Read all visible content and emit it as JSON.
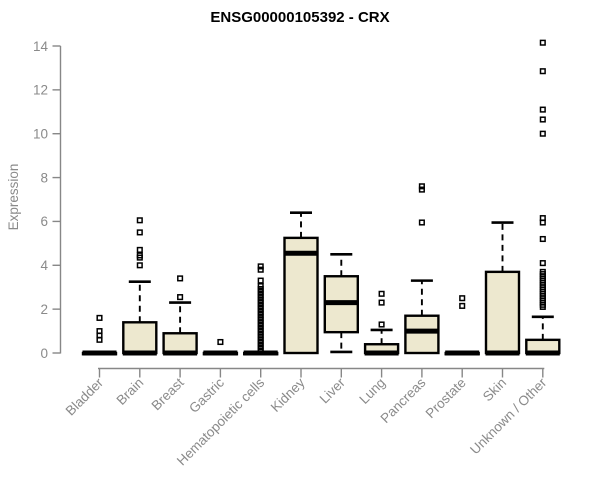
{
  "chart_data": {
    "type": "boxplot",
    "title": "ENSG00000105392 - CRX",
    "ylabel": "Expression",
    "ylim": [
      0,
      14
    ],
    "yticks": [
      0,
      2,
      4,
      6,
      8,
      10,
      12,
      14
    ],
    "grid": false,
    "legend": "none",
    "colors": {
      "box_fill": "#EDE8CF",
      "box_border": "#000000",
      "median": "#000000",
      "whisker": "#000000",
      "outlier": "#000000",
      "axis": "#878787",
      "tick_label": "#8A8A8A",
      "title": "#000000",
      "background": "#FFFFFF"
    },
    "categories": [
      "Bladder",
      "Brain",
      "Breast",
      "Gastric",
      "Hematopoietic cells",
      "Kidney",
      "Liver",
      "Lung",
      "Pancreas",
      "Prostate",
      "Skin",
      "Unknown / Other"
    ],
    "boxes": [
      {
        "category": "Bladder",
        "whisker_low": 0,
        "q1": 0,
        "median": 0,
        "q3": 0,
        "whisker_high": 0,
        "outliers": [
          0.6,
          0.8,
          1.0,
          1.6
        ]
      },
      {
        "category": "Brain",
        "whisker_low": 0,
        "q1": 0,
        "median": 0,
        "q3": 1.4,
        "whisker_high": 3.25,
        "outliers": [
          4.0,
          4.35,
          4.45,
          4.7,
          5.5,
          6.05
        ]
      },
      {
        "category": "Breast",
        "whisker_low": 0,
        "q1": 0,
        "median": 0,
        "q3": 0.9,
        "whisker_high": 2.3,
        "outliers": [
          2.55,
          3.4
        ]
      },
      {
        "category": "Gastric",
        "whisker_low": 0,
        "q1": 0,
        "median": 0,
        "q3": 0,
        "whisker_high": 0,
        "outliers": [
          0.5
        ]
      },
      {
        "category": "Hematopoietic cells",
        "whisker_low": 0,
        "q1": 0,
        "median": 0,
        "q3": 0,
        "whisker_high": 0,
        "outliers": [
          0.06,
          0.19,
          0.32,
          0.45,
          0.58,
          0.71,
          0.84,
          0.97,
          1.1,
          1.23,
          1.36,
          1.49,
          1.62,
          1.75,
          1.88,
          2.01,
          2.14,
          2.27,
          2.4,
          2.53,
          2.66,
          2.79,
          2.92,
          3.05,
          3.3,
          3.8,
          3.95
        ]
      },
      {
        "category": "Kidney",
        "whisker_low": 0,
        "q1": 0,
        "median": 4.55,
        "q3": 5.25,
        "whisker_high": 6.4,
        "outliers": []
      },
      {
        "category": "Liver",
        "whisker_low": 0.05,
        "q1": 0.95,
        "median": 2.3,
        "q3": 3.5,
        "whisker_high": 4.5,
        "outliers": []
      },
      {
        "category": "Lung",
        "whisker_low": 0,
        "q1": 0,
        "median": 0,
        "q3": 0.4,
        "whisker_high": 1.05,
        "outliers": [
          1.3,
          2.3,
          2.7
        ]
      },
      {
        "category": "Pancreas",
        "whisker_low": 0,
        "q1": 0,
        "median": 1.0,
        "q3": 1.7,
        "whisker_high": 3.3,
        "outliers": [
          5.95,
          7.45,
          7.6
        ]
      },
      {
        "category": "Prostate",
        "whisker_low": 0,
        "q1": 0,
        "median": 0,
        "q3": 0,
        "whisker_high": 0,
        "outliers": [
          2.15,
          2.5
        ]
      },
      {
        "category": "Skin",
        "whisker_low": 0,
        "q1": 0,
        "median": 0,
        "q3": 3.7,
        "whisker_high": 5.95,
        "outliers": []
      },
      {
        "category": "Unknown / Other",
        "whisker_low": 0,
        "q1": 0,
        "median": 0,
        "q3": 0.6,
        "whisker_high": 1.65,
        "outliers": [
          2.1,
          2.2,
          2.3,
          2.4,
          2.5,
          2.6,
          2.7,
          2.8,
          2.9,
          3.0,
          3.1,
          3.2,
          3.3,
          3.4,
          3.5,
          3.6,
          3.7,
          4.1,
          5.2,
          5.95,
          6.15,
          10.0,
          10.65,
          11.1,
          12.85,
          14.15
        ]
      }
    ]
  }
}
